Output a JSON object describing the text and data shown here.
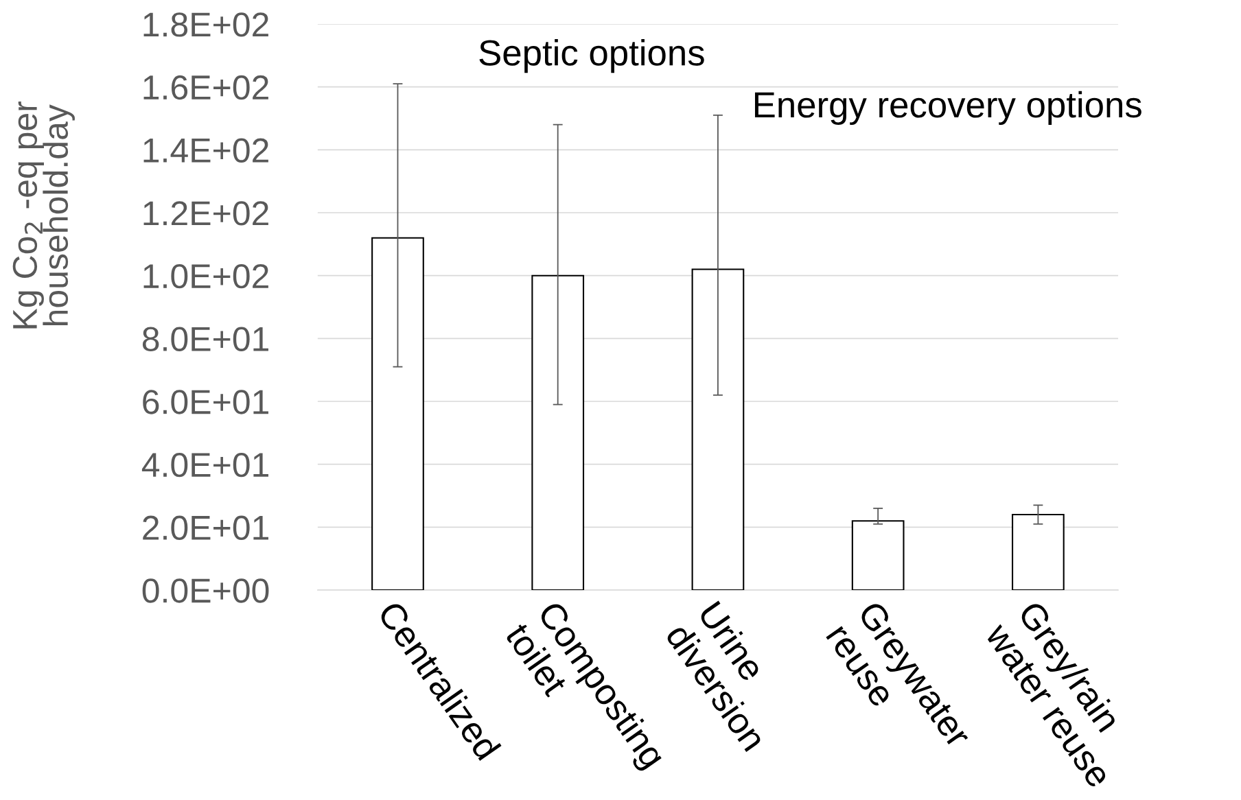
{
  "chart_data": {
    "type": "bar",
    "ylabel": "Kg Co$_{2}$ -eq per\nhousehold.day",
    "categories": [
      "Centralized",
      "Composting\ntoilet",
      "Urine\ndiversion",
      "Greywater\nreuse",
      "Grey/rain\nwater reuse"
    ],
    "values": [
      112,
      100,
      102,
      22,
      24
    ],
    "errors": [
      [
        71,
        161
      ],
      [
        59,
        148
      ],
      [
        62,
        151
      ],
      [
        21,
        26
      ],
      [
        21,
        27
      ]
    ],
    "color": "#ffffff",
    "ylim": [
      0,
      180
    ],
    "yticks": [
      {
        "value": 0,
        "label": "0.0E+00"
      },
      {
        "value": 20,
        "label": "2.0E+01"
      },
      {
        "value": 40,
        "label": "4.0E+01"
      },
      {
        "value": 60,
        "label": "6.0E+01"
      },
      {
        "value": 80,
        "label": "8.0E+01"
      },
      {
        "value": 100,
        "label": "1.0E+02"
      },
      {
        "value": 120,
        "label": "1.2E+02"
      },
      {
        "value": 140,
        "label": "1.4E+02"
      },
      {
        "value": 160,
        "label": "1.6E+02"
      },
      {
        "value": 180,
        "label": "1.8E+02"
      }
    ],
    "grid": "y",
    "annotations": [
      "Septic options",
      "Energy recovery options"
    ]
  }
}
